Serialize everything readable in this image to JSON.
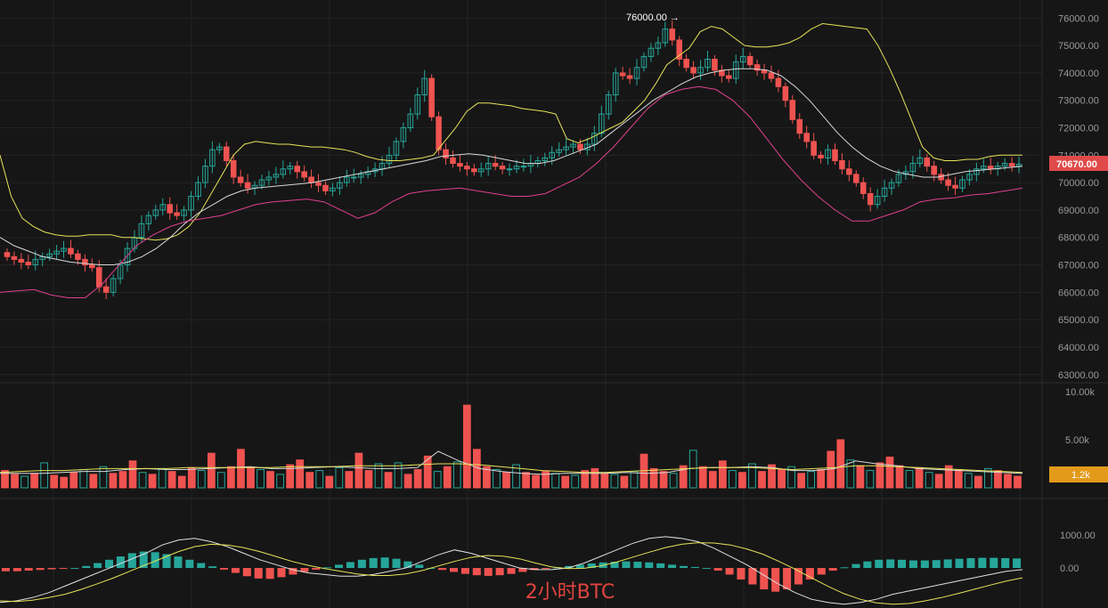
{
  "chart_title": "2小时BTC",
  "colors": {
    "background": "#161616",
    "up": "#26a69a",
    "down": "#ef5350",
    "boll_upper": "#e6e35a",
    "boll_middle": "#d8d8d8",
    "boll_lower": "#e0408f",
    "price_label_bg": "#e04a4a",
    "volume_label_bg": "#e39a1a",
    "macd_dif": "#e0e0e0",
    "macd_dea": "#e6e35a"
  },
  "price_axis": {
    "ticks": [
      "76000.00",
      "75000.00",
      "74000.00",
      "73000.00",
      "72000.00",
      "71000.00",
      "70000.00",
      "69000.00",
      "68000.00",
      "67000.00",
      "66000.00",
      "65000.00",
      "64000.00",
      "63000.00"
    ],
    "last_price": "70670.00",
    "high_marker": "76000.00 →"
  },
  "volume_axis": {
    "ticks": [
      "10.00k",
      "5.00k"
    ],
    "last_volume": "1.2k"
  },
  "macd_axis": {
    "ticks": [
      "1000.00",
      "0.00"
    ]
  },
  "chart_data": [
    {
      "type": "candlestick",
      "title": "2小时BTC",
      "ylim": [
        62700,
        76400
      ],
      "annotations": [
        "76000.00",
        "70670.00"
      ],
      "series": [
        {
          "name": "close",
          "values": [
            67300,
            67200,
            67100,
            67000,
            67200,
            67300,
            67400,
            67500,
            67600,
            67400,
            67200,
            67000,
            66900,
            66200,
            66000,
            66500,
            67000,
            67600,
            68000,
            68500,
            68800,
            69000,
            69200,
            68900,
            68800,
            69000,
            69500,
            70000,
            70600,
            71200,
            71300,
            70800,
            70200,
            70000,
            69800,
            69900,
            70100,
            70200,
            70300,
            70500,
            70600,
            70400,
            70200,
            70000,
            69900,
            69700,
            69800,
            70000,
            70200,
            70200,
            70300,
            70400,
            70500,
            70700,
            71000,
            71500,
            72000,
            72500,
            73200,
            73800,
            72400,
            71200,
            70900,
            70700,
            70600,
            70500,
            70400,
            70500,
            70700,
            70600,
            70500,
            70500,
            70600,
            70600,
            70700,
            70800,
            70900,
            71100,
            71200,
            71300,
            71400,
            71200,
            71400,
            71800,
            72500,
            73200,
            74000,
            73900,
            73800,
            74200,
            74600,
            74900,
            75100,
            75600,
            75200,
            74500,
            74200,
            74000,
            74200,
            74500,
            74100,
            73900,
            73800,
            74400,
            74600,
            74300,
            74100,
            74000,
            73800,
            73500,
            73000,
            72300,
            71800,
            71500,
            71000,
            70900,
            71200,
            70800,
            70500,
            70300,
            70000,
            69600,
            69200,
            69500,
            69800,
            70000,
            70300,
            70400,
            70700,
            70900,
            70600,
            70300,
            70100,
            69900,
            69800,
            70100,
            70300,
            70500,
            70600,
            70500,
            70600,
            70700,
            70600,
            70670
          ]
        },
        {
          "name": "boll_upper",
          "values": [
            71000,
            69500,
            68700,
            68400,
            68200,
            68100,
            68050,
            68050,
            68100,
            68100,
            68100,
            68000,
            68000,
            67950,
            67900,
            67950,
            68100,
            68400,
            68900,
            69600,
            70300,
            71000,
            71400,
            71500,
            71450,
            71400,
            71400,
            71350,
            71300,
            71300,
            71250,
            71200,
            71100,
            70950,
            70850,
            70800,
            70800,
            70850,
            70900,
            71000,
            71500,
            72000,
            72600,
            72900,
            72900,
            72850,
            72800,
            72700,
            72650,
            72600,
            72500,
            71600,
            71450,
            71600,
            71800,
            72000,
            72200,
            72600,
            73000,
            73600,
            74300,
            74600,
            74900,
            75500,
            75700,
            75600,
            75300,
            75000,
            74950,
            74950,
            75000,
            75100,
            75300,
            75600,
            75800,
            75750,
            75700,
            75650,
            75600,
            75000,
            74200,
            73300,
            72300,
            71300,
            70900,
            70800,
            70800,
            70850,
            70850,
            70950,
            71000,
            71000,
            71000
          ]
        },
        {
          "name": "boll_middle",
          "values": [
            68000,
            67700,
            67500,
            67300,
            67200,
            67100,
            67050,
            67000,
            67000,
            67100,
            67300,
            67600,
            68000,
            68500,
            68900,
            69200,
            69500,
            69700,
            69800,
            69850,
            69900,
            69950,
            70000,
            70100,
            70200,
            70300,
            70400,
            70500,
            70600,
            70700,
            70800,
            70950,
            71000,
            71050,
            71000,
            70900,
            70800,
            70700,
            70700,
            70800,
            71000,
            71200,
            71400,
            71800,
            72200,
            72600,
            73000,
            73300,
            73600,
            73850,
            74000,
            74100,
            74150,
            74150,
            74100,
            73900,
            73500,
            73000,
            72400,
            71800,
            71300,
            70900,
            70600,
            70400,
            70300,
            70200,
            70200,
            70300,
            70400,
            70450,
            70500,
            70550,
            70600
          ]
        },
        {
          "name": "boll_lower",
          "values": [
            66000,
            66050,
            66100,
            65900,
            65800,
            65800,
            66300,
            67000,
            67700,
            68100,
            68400,
            68600,
            68700,
            68800,
            69000,
            69200,
            69300,
            69350,
            69400,
            69300,
            69000,
            68700,
            68900,
            69300,
            69600,
            69700,
            69750,
            69800,
            69700,
            69600,
            69500,
            69500,
            69600,
            69900,
            70200,
            70700,
            71300,
            72000,
            72700,
            73200,
            73400,
            73500,
            73400,
            73000,
            72400,
            71600,
            70800,
            70100,
            69500,
            69000,
            68600,
            68600,
            68800,
            69000,
            69300,
            69400,
            69450,
            69550,
            69600,
            69700,
            69800
          ]
        }
      ]
    },
    {
      "type": "bar",
      "title": "",
      "ylim": [
        0,
        10000
      ],
      "annotations": [
        "1.2k"
      ],
      "series": [
        {
          "name": "volume",
          "values": [
            1800,
            1400,
            1200,
            1500,
            2600,
            1300,
            1100,
            1600,
            1900,
            1400,
            2200,
            1500,
            1700,
            2800,
            1600,
            1400,
            2000,
            1700,
            1200,
            2100,
            1800,
            3600,
            1600,
            2200,
            4000,
            2100,
            1900,
            1700,
            1400,
            2400,
            2900,
            1600,
            1800,
            1200,
            2100,
            1700,
            3600,
            1800,
            2500,
            1600,
            2600,
            1400,
            1900,
            3300,
            1700,
            2200,
            2700,
            8600,
            4000,
            2200,
            1900,
            1600,
            2400,
            1600,
            1300,
            1700,
            1500,
            1200,
            1300,
            1800,
            2000,
            1500,
            1400,
            1200,
            1700,
            3500,
            2000,
            1700,
            1500,
            2300,
            3900,
            2200,
            1700,
            2800,
            1800,
            1600,
            2500,
            1700,
            2400,
            1900,
            2200,
            1500,
            1700,
            1900,
            3800,
            5000,
            2900,
            2300,
            1800,
            2600,
            3200,
            2300,
            1800,
            2100,
            1600,
            1400,
            2300,
            1900,
            1500,
            1200,
            2000,
            1800,
            1400,
            1200
          ]
        },
        {
          "name": "volume_ma_fast",
          "values": [
            1500,
            1500,
            1500,
            1600,
            1700,
            1700,
            1900,
            2000,
            1900,
            1900,
            2000,
            2100,
            2200,
            2000,
            2000,
            2100,
            2200,
            2100,
            2000,
            2000,
            2100,
            3800,
            2800,
            2000,
            1700,
            1500,
            1400,
            1500,
            1500,
            1500,
            1600,
            1500,
            1600,
            2000,
            2100,
            2100,
            2200,
            2100,
            1800,
            1800,
            2000,
            2800,
            2500,
            2300,
            2000,
            1900,
            1800,
            1700,
            1600,
            1500
          ]
        },
        {
          "name": "volume_ma_slow",
          "values": [
            1600,
            1700,
            1800,
            1800,
            1900,
            2000,
            2000,
            2000,
            2000,
            2100,
            2100,
            2100,
            2100,
            2100,
            2200,
            2200,
            2200,
            2300,
            2300,
            2300,
            2400,
            2500,
            2500,
            2400,
            2200,
            2000,
            1800,
            1700,
            1600,
            1600,
            1700,
            1800,
            1900,
            2000,
            2100,
            2100,
            2100,
            2000,
            1900,
            2000,
            2100,
            2300,
            2300,
            2200,
            2100,
            2000,
            1900,
            1800,
            1700,
            1600
          ]
        }
      ]
    },
    {
      "type": "bar",
      "title": "",
      "ylim": [
        -1000,
        1300
      ],
      "series": [
        {
          "name": "macd_histogram",
          "values": [
            -100,
            -100,
            -80,
            -60,
            -40,
            -20,
            0,
            60,
            150,
            250,
            350,
            450,
            500,
            480,
            420,
            350,
            250,
            150,
            50,
            -50,
            -150,
            -250,
            -320,
            -330,
            -280,
            -200,
            -120,
            -50,
            20,
            100,
            180,
            250,
            300,
            320,
            280,
            200,
            100,
            0,
            -60,
            -120,
            -180,
            -220,
            -240,
            -220,
            -180,
            -120,
            -60,
            -20,
            20,
            60,
            100,
            140,
            170,
            190,
            200,
            190,
            170,
            140,
            100,
            60,
            30,
            0,
            -80,
            -200,
            -350,
            -500,
            -650,
            -720,
            -650,
            -500,
            -350,
            -200,
            -80,
            20,
            120,
            200,
            250,
            260,
            250,
            230,
            230,
            240,
            260,
            280,
            300,
            310,
            310,
            300,
            290
          ]
        },
        {
          "name": "macd_dif",
          "values": [
            -1050,
            -1000,
            -900,
            -750,
            -550,
            -350,
            -150,
            50,
            250,
            450,
            700,
            850,
            900,
            800,
            650,
            450,
            250,
            100,
            -50,
            -150,
            -200,
            -250,
            -250,
            -200,
            -100,
            0,
            200,
            400,
            550,
            450,
            300,
            150,
            0,
            -50,
            -50,
            0,
            150,
            350,
            550,
            750,
            900,
            950,
            900,
            800,
            600,
            350,
            100,
            -200,
            -500,
            -750,
            -950,
            -1050,
            -1100,
            -1050,
            -950,
            -800,
            -700,
            -600,
            -500,
            -400,
            -300,
            -200,
            -100,
            -50
          ]
        },
        {
          "name": "macd_dea",
          "values": [
            -1000,
            -1020,
            -980,
            -900,
            -800,
            -650,
            -480,
            -300,
            -100,
            100,
            300,
            500,
            650,
            720,
            700,
            620,
            500,
            350,
            200,
            80,
            -20,
            -100,
            -180,
            -230,
            -230,
            -180,
            -80,
            60,
            200,
            320,
            380,
            360,
            280,
            150,
            30,
            -20,
            -10,
            60,
            180,
            330,
            480,
            620,
            720,
            770,
            760,
            700,
            580,
            420,
            200,
            -40,
            -300,
            -550,
            -780,
            -950,
            -1060,
            -1100,
            -1080,
            -1000,
            -900,
            -780,
            -650,
            -520,
            -400,
            -300
          ]
        }
      ]
    }
  ]
}
